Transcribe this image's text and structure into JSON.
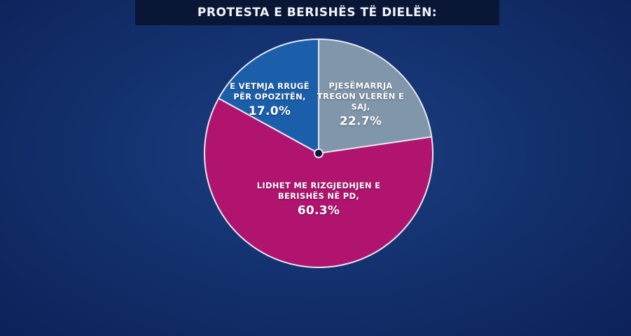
{
  "title": "PROTESTA E BERISHËS TË DIELËN:",
  "chart_data": {
    "type": "pie",
    "title": "PROTESTA E BERISHËS TË DIELËN:",
    "start_angle": "12 o'clock, clockwise",
    "slices": [
      {
        "label": "PJESËMARRJA TREGON VLERËN E SAJ,",
        "value": 22.7,
        "value_label": "22.7%",
        "color": "#8096ab"
      },
      {
        "label": "LIDHET ME RIZGJEDHJEN E BERISHËS NË PD,",
        "value": 60.3,
        "value_label": "60.3%",
        "color": "#b0146f"
      },
      {
        "label": "E VETMJA RRUGË PËR OPOZITËN,",
        "value": 17.0,
        "value_label": "17.0%",
        "color": "#1b5fab"
      }
    ]
  }
}
